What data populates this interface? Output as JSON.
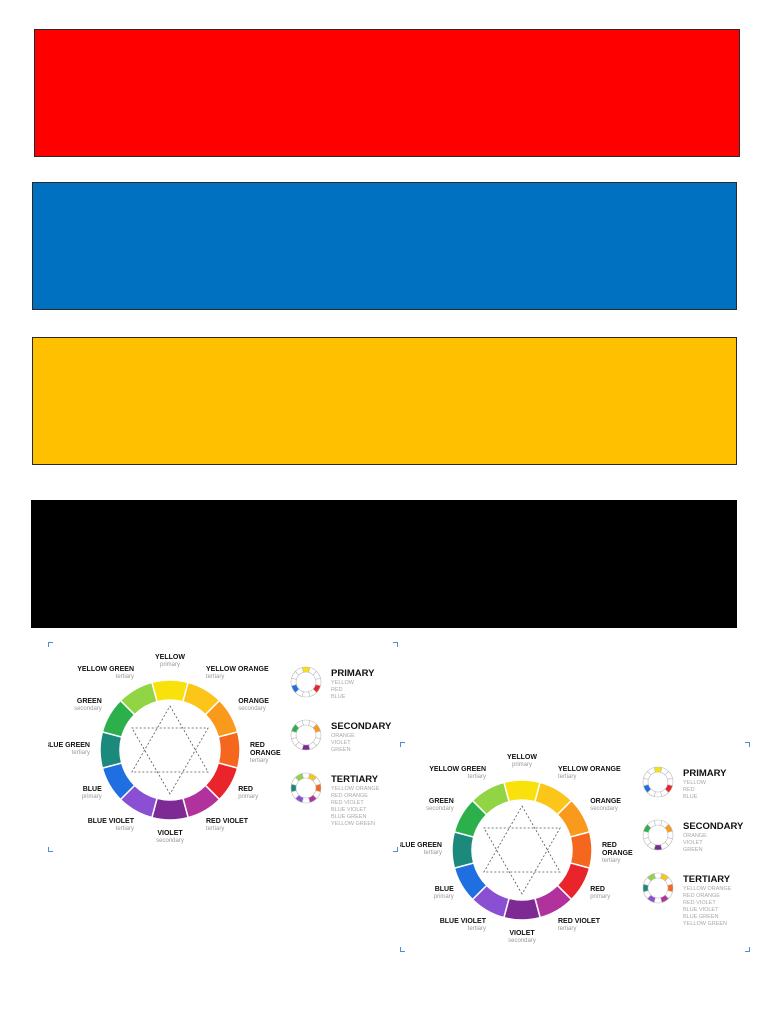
{
  "bands": [
    {
      "name": "red-band",
      "color": "#ff0000"
    },
    {
      "name": "blue-band",
      "color": "#0070c0"
    },
    {
      "name": "yellow-band",
      "color": "#ffc000"
    },
    {
      "name": "black-band",
      "color": "#000000"
    }
  ],
  "wheel": {
    "segments": [
      {
        "label": "YELLOW",
        "type": "primary",
        "color": "#f9e10b"
      },
      {
        "label": "YELLOW ORANGE",
        "type": "tertiary",
        "color": "#fbc51a"
      },
      {
        "label": "ORANGE",
        "type": "secondary",
        "color": "#f99a1c"
      },
      {
        "label": "RED ORANGE",
        "type": "tertiary",
        "color": "#f5661f"
      },
      {
        "label": "RED",
        "type": "primary",
        "color": "#e9252b"
      },
      {
        "label": "RED VIOLET",
        "type": "tertiary",
        "color": "#b1329c"
      },
      {
        "label": "VIOLET",
        "type": "secondary",
        "color": "#7d2a94"
      },
      {
        "label": "BLUE VIOLET",
        "type": "tertiary",
        "color": "#8a4fd2"
      },
      {
        "label": "BLUE",
        "type": "primary",
        "color": "#1f6fe0"
      },
      {
        "label": "BLUE GREEN",
        "type": "tertiary",
        "color": "#1b8a7d"
      },
      {
        "label": "GREEN",
        "type": "secondary",
        "color": "#2bb04b"
      },
      {
        "label": "YELLOW GREEN",
        "type": "tertiary",
        "color": "#91d444"
      }
    ],
    "legend": [
      {
        "title": "PRIMARY",
        "items": [
          "YELLOW",
          "RED",
          "BLUE"
        ],
        "highlight": [
          0,
          4,
          8
        ]
      },
      {
        "title": "SECONDARY",
        "items": [
          "ORANGE",
          "VIOLET",
          "GREEN"
        ],
        "highlight": [
          2,
          6,
          10
        ]
      },
      {
        "title": "TERTIARY",
        "items": [
          "YELLOW ORANGE",
          "RED ORANGE",
          "RED VIOLET",
          "BLUE VIOLET",
          "BLUE GREEN",
          "YELLOW GREEN"
        ],
        "highlight": [
          1,
          3,
          5,
          7,
          9,
          11
        ]
      }
    ]
  }
}
